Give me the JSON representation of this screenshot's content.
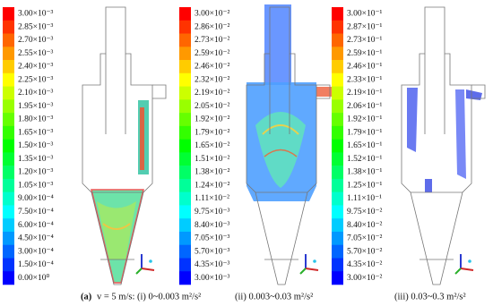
{
  "panels": [
    {
      "labels": [
        "3.00×10⁻³",
        "2.85×10⁻³",
        "2.70×10⁻³",
        "2.55×10⁻³",
        "2.40×10⁻³",
        "2.25×10⁻³",
        "2.10×10⁻³",
        "1.95×10⁻³",
        "1.80×10⁻³",
        "1.65×10⁻³",
        "1.50×10⁻³",
        "1.35×10⁻³",
        "1.20×10⁻³",
        "1.05×10⁻³",
        "9.00×10⁻⁴",
        "7.50×10⁻⁴",
        "6.00×10⁻⁴",
        "4.50×10⁻⁴",
        "3.00×10⁻⁴",
        "1.50×10⁻⁴",
        "0.00×10⁰"
      ],
      "caption_label": "(a)",
      "caption": "v = 5 m/s: (i) 0~0.003 m²/s²"
    },
    {
      "labels": [
        "3.00×10⁻²",
        "2.86×10⁻²",
        "2.73×10⁻²",
        "2.59×10⁻²",
        "2.46×10⁻²",
        "2.32×10⁻²",
        "2.19×10⁻²",
        "2.05×10⁻²",
        "1.92×10⁻²",
        "1.79×10⁻²",
        "1.65×10⁻²",
        "1.51×10⁻²",
        "1.38×10⁻²",
        "1.24×10⁻²",
        "1.11×10⁻²",
        "9.75×10⁻³",
        "8.40×10⁻³",
        "7.05×10⁻³",
        "5.70×10⁻³",
        "4.35×10⁻³",
        "3.00×10⁻³"
      ],
      "caption": "(ii) 0.003~0.03 m²/s²"
    },
    {
      "labels": [
        "3.00×10⁻¹",
        "2.87×10⁻¹",
        "2.73×10⁻¹",
        "2.59×10⁻¹",
        "2.46×10⁻¹",
        "2.33×10⁻¹",
        "2.19×10⁻¹",
        "2.06×10⁻¹",
        "1.92×10⁻¹",
        "1.79×10⁻¹",
        "1.65×10⁻¹",
        "1.52×10⁻¹",
        "1.38×10⁻¹",
        "1.25×10⁻¹",
        "1.11×10⁻¹",
        "9.75×10⁻²",
        "8.40×10⁻²",
        "7.05×10⁻²",
        "5.70×10⁻²",
        "4.35×10⁻²",
        "3.00×10⁻²"
      ],
      "caption": "(iii) 0.03~0.3 m²/s²"
    }
  ]
}
